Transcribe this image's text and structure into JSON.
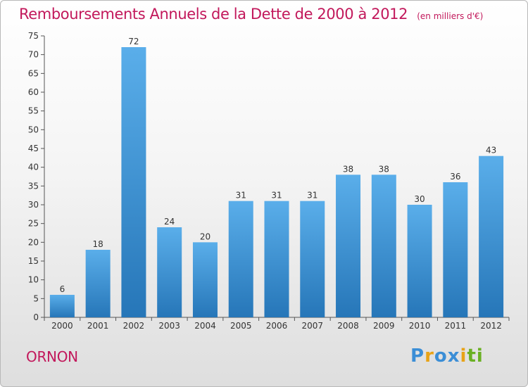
{
  "chart_data": {
    "type": "bar",
    "title": "Remboursements Annuels de la Dette de 2000 à 2012",
    "subtitle": "(en milliers d'€)",
    "categories": [
      "2000",
      "2001",
      "2002",
      "2003",
      "2004",
      "2005",
      "2006",
      "2007",
      "2008",
      "2009",
      "2010",
      "2011",
      "2012"
    ],
    "values": [
      6,
      18,
      72,
      24,
      20,
      31,
      31,
      31,
      38,
      38,
      30,
      36,
      43
    ],
    "ylim": [
      0,
      75
    ],
    "yticks": [
      0,
      5,
      10,
      15,
      20,
      25,
      30,
      35,
      40,
      45,
      50,
      55,
      60,
      65,
      70,
      75
    ],
    "xlabel": "",
    "ylabel": "",
    "grid": false,
    "bar_color": "#3d93d8"
  },
  "footer": {
    "commune": "ORNON",
    "brand_letters": [
      "P",
      "r",
      "o",
      "x",
      "i",
      "t",
      "i"
    ],
    "brand_colors": [
      "#3b8ed6",
      "#e8a317",
      "#3b8ed6",
      "#3b8ed6",
      "#e8a317",
      "#6ab023",
      "#6ab023"
    ]
  }
}
